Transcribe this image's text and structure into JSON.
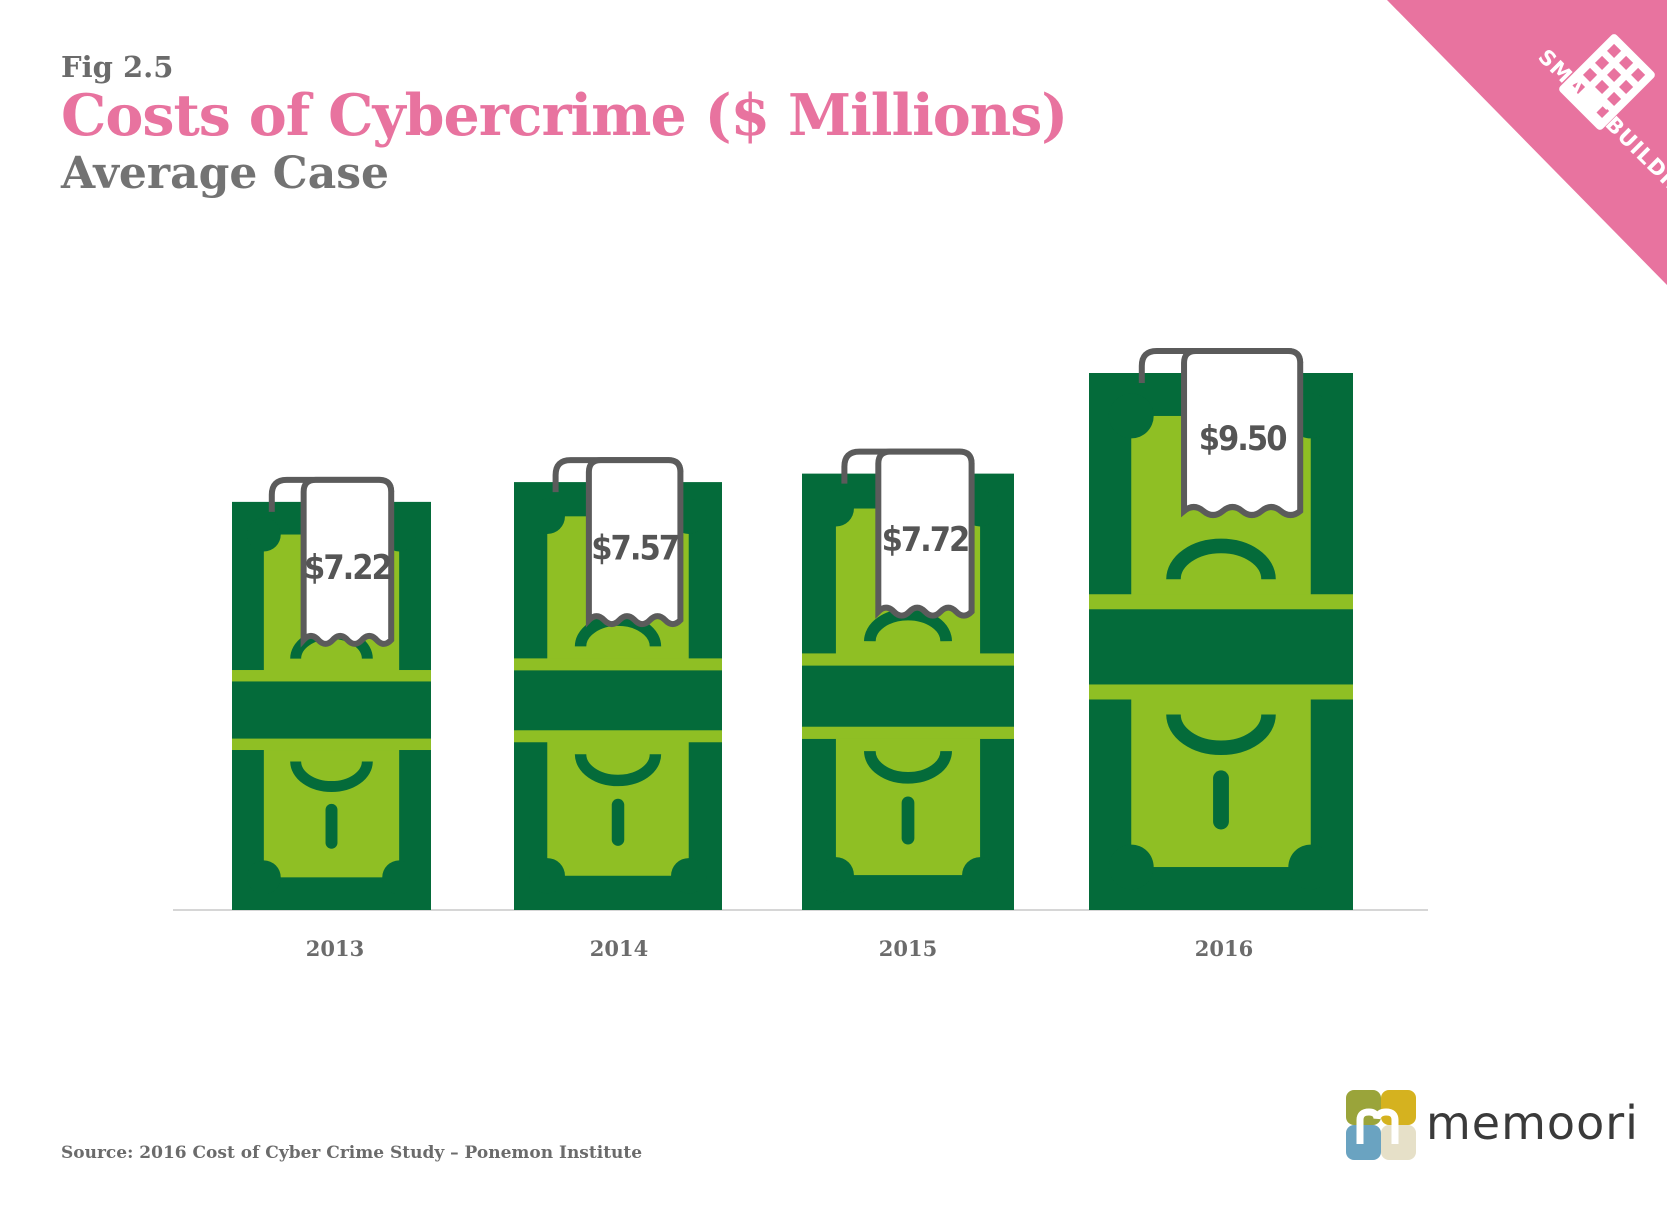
{
  "header": {
    "fig": "Fig 2.5",
    "title": "Costs of Cybercrime ($ Millions)",
    "subtitle": "Average Case"
  },
  "badge": {
    "text": "SMART BUILDINGS",
    "icon": "building-grid-icon",
    "color": "#e8739f"
  },
  "source": "Source: 2016 Cost of Cyber Crime Study – Ponemon Institute",
  "logo": {
    "text": "memoori",
    "icon": "memoori-m-icon"
  },
  "colors": {
    "bill_dark": "#046b3a",
    "bill_light": "#8fbf24",
    "tag_border": "#5b5b5b",
    "axis": "#d6d6d6"
  },
  "chart_data": {
    "type": "bar",
    "categories": [
      "2013",
      "2014",
      "2015",
      "2016"
    ],
    "values": [
      7.22,
      7.57,
      7.72,
      9.5
    ],
    "value_labels": [
      "$7.22",
      "$7.57",
      "$7.72",
      "$9.50"
    ],
    "title": "Costs of Cybercrime ($ Millions)",
    "subtitle": "Average Case",
    "xlabel": "",
    "ylabel": "",
    "ylim": [
      0,
      9.5
    ],
    "grid": false,
    "legend": "none"
  }
}
